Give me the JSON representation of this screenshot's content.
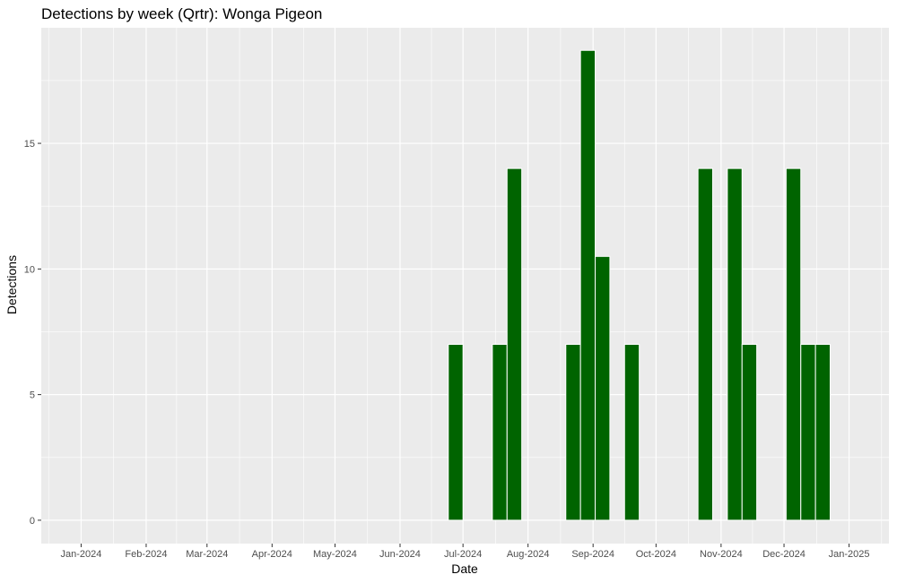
{
  "chart_data": {
    "type": "bar",
    "title": "Detections by week (Qrtr): Wonga Pigeon",
    "xlabel": "Date",
    "ylabel": "Detections",
    "x_tick_labels": [
      "Jan-2024",
      "Feb-2024",
      "Mar-2024",
      "Apr-2024",
      "May-2024",
      "Jun-2024",
      "Jul-2024",
      "Aug-2024",
      "Sep-2024",
      "Oct-2024",
      "Nov-2024",
      "Dec-2024",
      "Jan-2025"
    ],
    "x_ticks": [
      "2024-01-01",
      "2024-02-01",
      "2024-03-01",
      "2024-04-01",
      "2024-05-01",
      "2024-06-01",
      "2024-07-01",
      "2024-08-01",
      "2024-09-01",
      "2024-10-01",
      "2024-11-01",
      "2024-12-01",
      "2025-01-01"
    ],
    "xlim": [
      "2023-12-13",
      "2025-01-20"
    ],
    "y_ticks": [
      0,
      5,
      10,
      15
    ],
    "ylim": [
      -0.93,
      19.6
    ],
    "grid": true,
    "bar_color": "#006400",
    "panel_color": "#ebebeb",
    "weeks": [
      "2024-06-24",
      "2024-07-15",
      "2024-07-22",
      "2024-08-19",
      "2024-08-26",
      "2024-09-02",
      "2024-09-16",
      "2024-10-21",
      "2024-11-04",
      "2024-11-11",
      "2024-12-02",
      "2024-12-09",
      "2024-12-16"
    ],
    "values": [
      7,
      7,
      14,
      7,
      18.7,
      10.5,
      7,
      14,
      14,
      7,
      14,
      7,
      7
    ]
  }
}
